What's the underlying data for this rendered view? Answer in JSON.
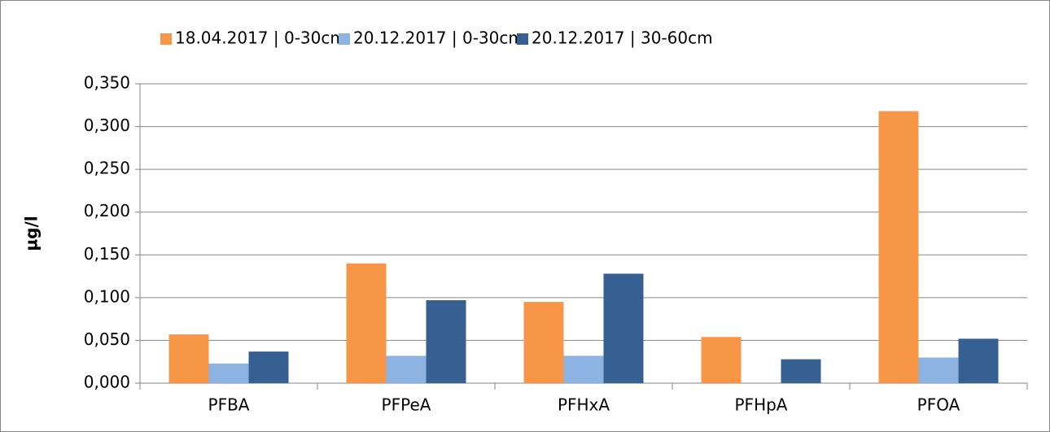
{
  "chart_data": {
    "type": "bar",
    "y_label": "µg/l",
    "categories": [
      "PFBA",
      "PFPeA",
      "PFHxA",
      "PFHpA",
      "PFOA"
    ],
    "series": [
      {
        "name": "18.04.2017 | 0-30cm",
        "color": "#f79646",
        "values": [
          0.057,
          0.14,
          0.095,
          0.054,
          0.318
        ]
      },
      {
        "name": "20.12.2017 | 0-30cm",
        "color": "#8db3e2",
        "values": [
          0.023,
          0.032,
          0.032,
          null,
          0.03
        ]
      },
      {
        "name": "20.12.2017 | 30-60cm",
        "color": "#376092",
        "values": [
          0.037,
          0.097,
          0.128,
          0.028,
          0.052
        ]
      }
    ],
    "ylim": [
      0,
      0.35
    ],
    "yticks": [
      {
        "value": 0,
        "label": "0,000"
      },
      {
        "value": 0.05,
        "label": "0,050"
      },
      {
        "value": 0.1,
        "label": "0,100"
      },
      {
        "value": 0.15,
        "label": "0,150"
      },
      {
        "value": 0.2,
        "label": "0,200"
      },
      {
        "value": 0.25,
        "label": "0,250"
      },
      {
        "value": 0.3,
        "label": "0,300"
      },
      {
        "value": 0.35,
        "label": "0,350"
      }
    ],
    "grid": true,
    "legend": "top"
  }
}
